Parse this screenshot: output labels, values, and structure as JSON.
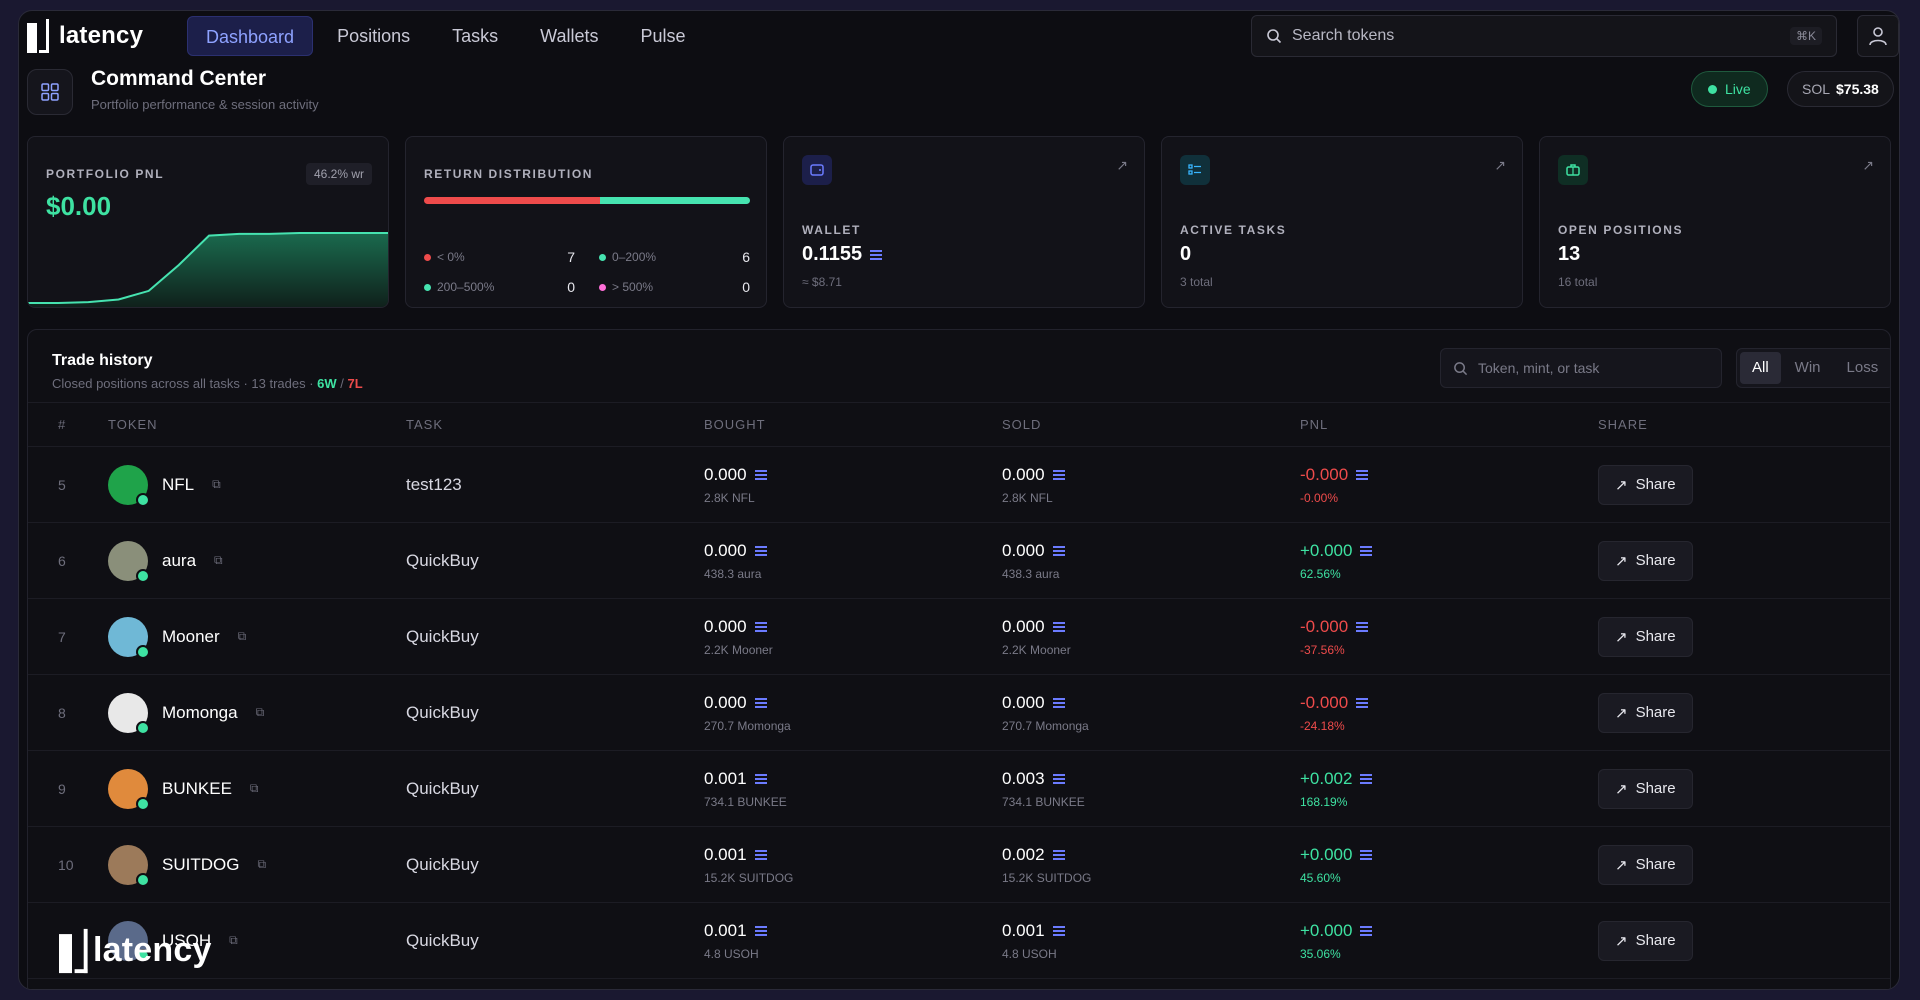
{
  "brand": {
    "name": "latency"
  },
  "nav": {
    "items": [
      "Dashboard",
      "Positions",
      "Tasks",
      "Wallets",
      "Pulse"
    ],
    "active": 0
  },
  "search": {
    "placeholder": "Search tokens",
    "shortcut": "⌘K"
  },
  "header": {
    "title": "Command Center",
    "subtitle": "Portfolio performance & session activity",
    "live": "Live",
    "sol_label": "SOL",
    "sol_price": "$75.38"
  },
  "cards": {
    "pnl": {
      "label": "PORTFOLIO PNL",
      "value": "$0.00",
      "winrate": "46.2% wr",
      "curve": [
        0,
        0,
        1,
        4,
        14,
        44,
        78,
        80,
        80,
        81,
        81,
        81,
        81
      ]
    },
    "distribution": {
      "label": "RETURN DISTRIBUTION",
      "split": [
        0.54,
        0.46
      ],
      "buckets": [
        {
          "label": "< 0%",
          "count": "7",
          "color": "#ee4b4b"
        },
        {
          "label": "0–200%",
          "count": "6",
          "color": "#46e3b0"
        },
        {
          "label": "200–500%",
          "count": "0",
          "color": "#46e3b0"
        },
        {
          "label": "> 500%",
          "count": "0",
          "color": "#ff6fd8"
        }
      ]
    },
    "wallet": {
      "label": "WALLET",
      "value": "0.1155",
      "sub": "≈ $8.71",
      "icon": "wallet-icon",
      "color": "#6b7bff"
    },
    "tasks": {
      "label": "ACTIVE TASKS",
      "value": "0",
      "sub": "3 total",
      "icon": "tasks-icon",
      "color": "#38b6ff"
    },
    "positions": {
      "label": "OPEN POSITIONS",
      "value": "13",
      "sub": "16 total",
      "icon": "briefcase-icon",
      "color": "#3ee2a2"
    }
  },
  "trades": {
    "title": "Trade history",
    "subtitle_prefix": "Closed positions across all tasks · 13 trades · ",
    "wins": "6W",
    "losses": "7L",
    "search_placeholder": "Token, mint, or task",
    "filters": [
      "All",
      "Win",
      "Loss"
    ],
    "active_filter": 0,
    "columns": [
      "#",
      "TOKEN",
      "TASK",
      "BOUGHT",
      "SOLD",
      "PNL",
      "SHARE"
    ],
    "share_label": "Share",
    "rows": [
      {
        "n": "5",
        "token": "NFL",
        "task": "test123",
        "bought": "0.000",
        "bought_sub": "2.8K NFL",
        "sold": "0.000",
        "sold_sub": "2.8K NFL",
        "pnl": "-0.000",
        "pct": "-0.00%",
        "dir": "neg",
        "avatar": "#1fa34a"
      },
      {
        "n": "6",
        "token": "aura",
        "task": "QuickBuy",
        "bought": "0.000",
        "bought_sub": "438.3 aura",
        "sold": "0.000",
        "sold_sub": "438.3 aura",
        "pnl": "+0.000",
        "pct": "62.56%",
        "dir": "pos",
        "avatar": "#8a8f7a"
      },
      {
        "n": "7",
        "token": "Mooner",
        "task": "QuickBuy",
        "bought": "0.000",
        "bought_sub": "2.2K Mooner",
        "sold": "0.000",
        "sold_sub": "2.2K Mooner",
        "pnl": "-0.000",
        "pct": "-37.56%",
        "dir": "neg",
        "avatar": "#6fb8d6"
      },
      {
        "n": "8",
        "token": "Momonga",
        "task": "QuickBuy",
        "bought": "0.000",
        "bought_sub": "270.7 Momonga",
        "sold": "0.000",
        "sold_sub": "270.7 Momonga",
        "pnl": "-0.000",
        "pct": "-24.18%",
        "dir": "neg",
        "avatar": "#e8e8e8"
      },
      {
        "n": "9",
        "token": "BUNKEE",
        "task": "QuickBuy",
        "bought": "0.001",
        "bought_sub": "734.1 BUNKEE",
        "sold": "0.003",
        "sold_sub": "734.1 BUNKEE",
        "pnl": "+0.002",
        "pct": "168.19%",
        "dir": "pos",
        "avatar": "#e08a3c"
      },
      {
        "n": "10",
        "token": "SUITDOG",
        "task": "QuickBuy",
        "bought": "0.001",
        "bought_sub": "15.2K SUITDOG",
        "sold": "0.002",
        "sold_sub": "15.2K SUITDOG",
        "pnl": "+0.000",
        "pct": "45.60%",
        "dir": "pos",
        "avatar": "#9c7a5a"
      },
      {
        "n": "11",
        "token": "USOH",
        "task": "QuickBuy",
        "bought": "0.001",
        "bought_sub": "4.8 USOH",
        "sold": "0.001",
        "sold_sub": "4.8 USOH",
        "pnl": "+0.000",
        "pct": "35.06%",
        "dir": "pos",
        "avatar": "#5a6a8a"
      }
    ]
  }
}
